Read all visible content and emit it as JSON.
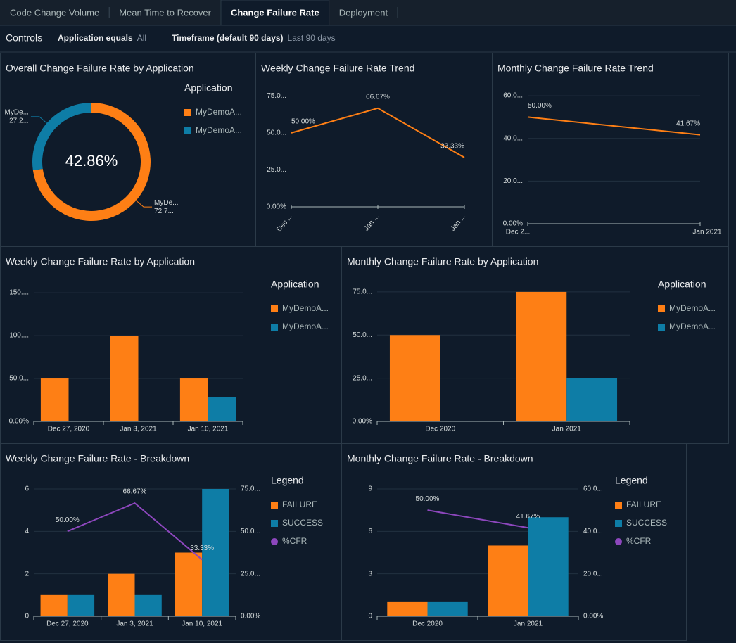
{
  "tabs": [
    {
      "label": "Code Change Volume",
      "active": false
    },
    {
      "label": "Mean Time to Recover",
      "active": false
    },
    {
      "label": "Change Failure Rate",
      "active": true
    },
    {
      "label": "Deployment",
      "active": false
    }
  ],
  "controls": {
    "title": "Controls",
    "filters": [
      {
        "label": "Application equals",
        "value": "All"
      },
      {
        "label": "Timeframe (default 90 days)",
        "value": "Last 90 days"
      }
    ]
  },
  "chart_data": [
    {
      "type": "pie",
      "donut": true,
      "title": "Overall Change Failure Rate by Application",
      "center_label": "42.86%",
      "legend_title": "Application",
      "categories": [
        "MyDemoA...",
        "MyDemoA..."
      ],
      "slice_labels": [
        "MyDe...",
        "MyDe..."
      ],
      "values": [
        72.73,
        27.27
      ],
      "value_labels": [
        "72.7...",
        "27.2..."
      ],
      "colors": [
        "#fe7f15",
        "#0e7da6"
      ]
    },
    {
      "type": "line",
      "title": "Weekly Change Failure Rate Trend",
      "categories": [
        "Dec ...",
        "Jan ...",
        "Jan ..."
      ],
      "values": [
        50,
        66.67,
        33.33
      ],
      "value_labels": [
        "50.00%",
        "66.67%",
        "33.33%"
      ],
      "color": "#fe7f15",
      "ylim": [
        0,
        78
      ],
      "yticks": [
        {
          "value": 0,
          "label": "0.00%"
        },
        {
          "value": 25,
          "label": "25.0..."
        },
        {
          "value": 50,
          "label": "50.0..."
        },
        {
          "value": 75,
          "label": "75.0..."
        }
      ],
      "grid": false
    },
    {
      "type": "line",
      "title": "Monthly Change Failure Rate Trend",
      "categories": [
        "Dec 2...",
        "Jan 2021"
      ],
      "values": [
        50,
        41.67
      ],
      "value_labels": [
        "50.00%",
        "41.67%"
      ],
      "color": "#fe7f15",
      "ylim": [
        0,
        62
      ],
      "yticks": [
        {
          "value": 0,
          "label": "0.00%"
        },
        {
          "value": 20,
          "label": "20.0..."
        },
        {
          "value": 40,
          "label": "40.0..."
        },
        {
          "value": 60,
          "label": "60.0..."
        }
      ],
      "grid": true
    },
    {
      "type": "bar",
      "title": "Weekly Change Failure Rate by Application",
      "legend_title": "Application",
      "categories": [
        "Dec 27, 2020",
        "Jan 3, 2021",
        "Jan 10, 2021"
      ],
      "series": [
        {
          "name": "MyDemoA...",
          "color": "#fe7f15",
          "values": [
            50,
            100,
            50
          ]
        },
        {
          "name": "MyDemoA...",
          "color": "#0e7da6",
          "values": [
            null,
            null,
            28.57
          ]
        }
      ],
      "ylim": [
        0,
        155
      ],
      "yticks": [
        {
          "value": 0,
          "label": "0.00%"
        },
        {
          "value": 50,
          "label": "50.0..."
        },
        {
          "value": 100,
          "label": "100...."
        },
        {
          "value": 150,
          "label": "150...."
        }
      ],
      "grid": true
    },
    {
      "type": "bar",
      "title": "Monthly Change Failure Rate by Application",
      "legend_title": "Application",
      "categories": [
        "Dec 2020",
        "Jan 2021"
      ],
      "series": [
        {
          "name": "MyDemoA...",
          "color": "#fe7f15",
          "values": [
            50,
            75
          ]
        },
        {
          "name": "MyDemoA...",
          "color": "#0e7da6",
          "values": [
            null,
            25
          ]
        }
      ],
      "ylim": [
        0,
        77
      ],
      "yticks": [
        {
          "value": 0,
          "label": "0.00%"
        },
        {
          "value": 25,
          "label": "25.0..."
        },
        {
          "value": 50,
          "label": "50.0..."
        },
        {
          "value": 75,
          "label": "75.0..."
        }
      ],
      "grid": true
    },
    {
      "type": "combo",
      "title": "Weekly Change Failure Rate - Breakdown",
      "legend_title": "Legend",
      "categories": [
        "Dec 27, 2020",
        "Jan 3, 2021",
        "Jan 10, 2021"
      ],
      "series": [
        {
          "name": "FAILURE",
          "type": "bar",
          "color": "#fe7f15",
          "values": [
            1,
            2,
            3
          ]
        },
        {
          "name": "SUCCESS",
          "type": "bar",
          "color": "#0e7da6",
          "values": [
            1,
            1,
            6
          ]
        },
        {
          "name": "%CFR",
          "type": "line",
          "axis": "y2",
          "color": "#8d47bd",
          "values": [
            50,
            66.67,
            33.33
          ],
          "value_labels": [
            "50.00%",
            "66.67%",
            "33.33%"
          ]
        }
      ],
      "ylim": [
        0,
        6
      ],
      "yticks": [
        0,
        2,
        4,
        6
      ],
      "y2lim": [
        0,
        75
      ],
      "y2ticks": [
        {
          "value": 0,
          "label": "0.00%"
        },
        {
          "value": 25,
          "label": "25.0..."
        },
        {
          "value": 50,
          "label": "50.0..."
        },
        {
          "value": 75,
          "label": "75.0..."
        }
      ],
      "grid": true
    },
    {
      "type": "combo",
      "title": "Monthly Change Failure Rate - Breakdown",
      "legend_title": "Legend",
      "categories": [
        "Dec 2020",
        "Jan 2021"
      ],
      "series": [
        {
          "name": "FAILURE",
          "type": "bar",
          "color": "#fe7f15",
          "values": [
            1,
            5
          ]
        },
        {
          "name": "SUCCESS",
          "type": "bar",
          "color": "#0e7da6",
          "values": [
            1,
            7
          ]
        },
        {
          "name": "%CFR",
          "type": "line",
          "axis": "y2",
          "color": "#8d47bd",
          "values": [
            50,
            41.67
          ],
          "value_labels": [
            "50.00%",
            "41.67%"
          ]
        }
      ],
      "ylim": [
        0,
        9
      ],
      "yticks": [
        0,
        3,
        6,
        9
      ],
      "y2lim": [
        0,
        60
      ],
      "y2ticks": [
        {
          "value": 0,
          "label": "0.00%"
        },
        {
          "value": 20,
          "label": "20.0..."
        },
        {
          "value": 40,
          "label": "40.0..."
        },
        {
          "value": 60,
          "label": "60.0..."
        }
      ],
      "grid": true
    }
  ]
}
